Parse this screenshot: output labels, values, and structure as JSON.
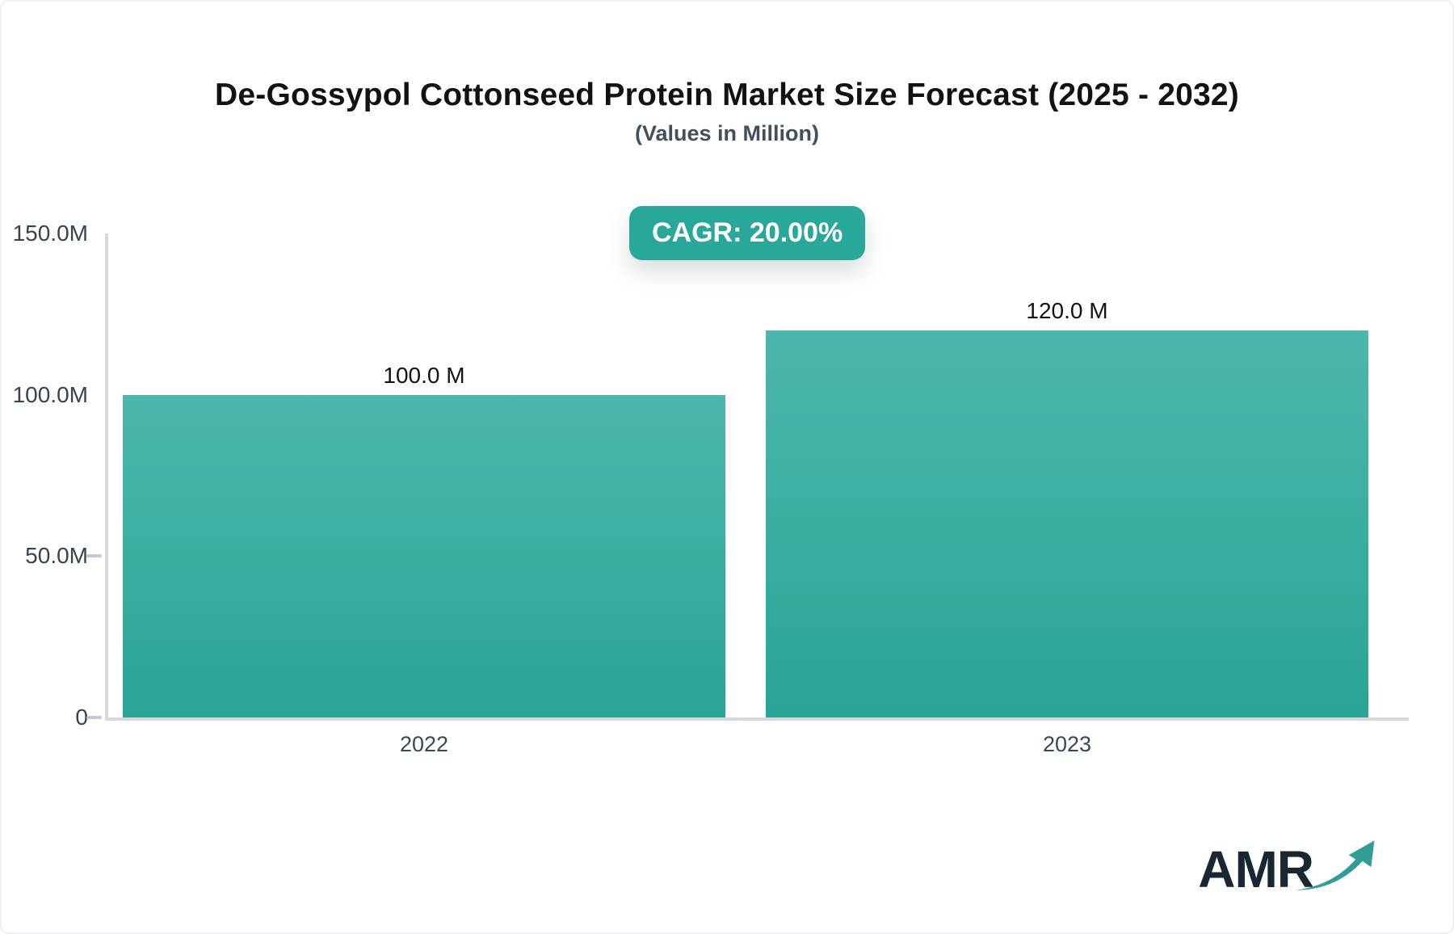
{
  "header": {
    "title": "De-Gossypol Cottonseed Protein Market Size Forecast (2025 - 2032)",
    "subtitle": "(Values in Million)"
  },
  "badge": {
    "label": "CAGR: 20.00%",
    "background": "#2aa79b",
    "text_color": "#ffffff"
  },
  "chart_data": {
    "type": "bar",
    "title": "De-Gossypol Cottonseed Protein Market Size Forecast (2025 - 2032)",
    "subtitle": "(Values in Million)",
    "categories": [
      "2022",
      "2023"
    ],
    "values": [
      100.0,
      120.0
    ],
    "value_labels": [
      "100.0 M",
      "120.0 M"
    ],
    "xlabel": "",
    "ylabel": "",
    "ylim": [
      0,
      150
    ],
    "yticks": [
      {
        "value": 150,
        "label": "150.0M",
        "dash": false
      },
      {
        "value": 100,
        "label": "100.0M",
        "dash": false
      },
      {
        "value": 50,
        "label": "50.0M",
        "dash": true
      },
      {
        "value": 0,
        "label": "0",
        "dash": true
      }
    ],
    "grid": false,
    "legend": false,
    "bar_gradient_top": "#4db7ad",
    "bar_gradient_bottom": "#29a496",
    "axis_color": "#d6dade",
    "tick_label_color": "#37434f"
  },
  "logo": {
    "text": "AMR",
    "icon": "trend-arrow-icon",
    "text_color": "#182731",
    "arrow_color": "#2f9e96"
  }
}
